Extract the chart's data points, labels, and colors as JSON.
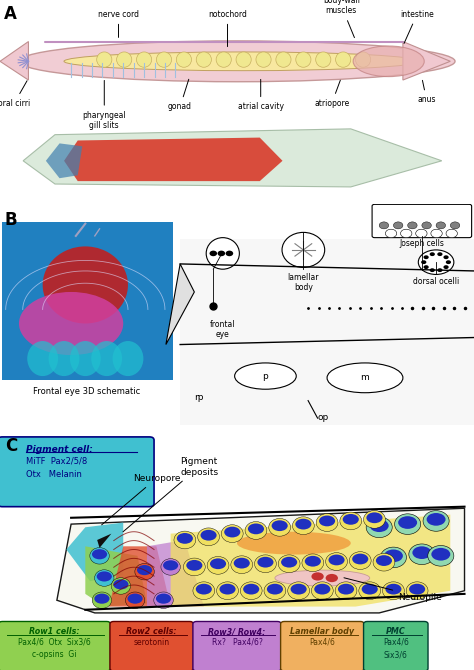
{
  "fig_width": 4.74,
  "fig_height": 6.7,
  "dpi": 100,
  "bg_color": "#ffffff",
  "panel_B_label_3d": "Frontal eye 3D schematic",
  "panel_C_annotations": {
    "neuropore": "Neuropore",
    "pigment_deposits": "Pigment\ndeposits",
    "neuropile": "Neuropile"
  },
  "pigment_cell_box": {
    "title": "Pigment cell:",
    "lines": [
      "MiTF  Pax2/5/8",
      "Otx   Melanin"
    ],
    "bg": "#40c0d0",
    "text_color": "#000080",
    "border_color": "#000080"
  },
  "legend_boxes": [
    {
      "title": "Row1 cells:",
      "lines": [
        "Pax4/6  Otx  Six3/6",
        "c-opsins  Gi"
      ],
      "bg": "#90d050",
      "text_color": "#006000",
      "border_color": "#006000"
    },
    {
      "title": "Row2 cells:",
      "lines": [
        "serotonin"
      ],
      "bg": "#e05030",
      "text_color": "#600000",
      "border_color": "#600000"
    },
    {
      "title": "Row3/ Row4:",
      "lines": [
        "Rx?   Pax4/6?"
      ],
      "bg": "#c080d0",
      "text_color": "#400060",
      "border_color": "#400060"
    },
    {
      "title": "Lamellar body",
      "lines": [
        "Pax4/6"
      ],
      "bg": "#f0b060",
      "text_color": "#604000",
      "border_color": "#604000"
    },
    {
      "title": "PMC",
      "lines": [
        "Pax4/6",
        "Six3/6"
      ],
      "bg": "#50c080",
      "text_color": "#004030",
      "border_color": "#004030"
    }
  ],
  "panel_C_colors": {
    "cyan_region": "#40c0d0",
    "green_region": "#90d050",
    "red_region": "#e05030",
    "purple_region": "#c080d0",
    "yellow_region": "#f0e060",
    "orange_region": "#f0a040",
    "light_pink": "#f0c0d0",
    "light_green": "#90d8b0",
    "black_pigment": "#101010",
    "blue_nuclei": "#2030c0",
    "red_nuclei": "#c02020"
  }
}
